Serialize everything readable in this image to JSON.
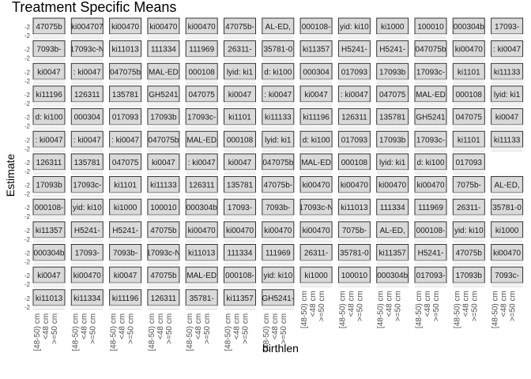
{
  "chart_data": {
    "type": "scatter",
    "title": "Treatment Specific Means",
    "xlabel": "birthlen",
    "ylabel": "Estimate",
    "categories": [
      "[48-50) cm",
      "<48 cm",
      ">=50 cm"
    ],
    "y_tick_label": "-2",
    "panel_bottom_row_columns": [
      0,
      1,
      2,
      3,
      4,
      5,
      6
    ],
    "strip_labels": [
      [
        "47075b",
        "ki004707",
        "ki00470",
        "ki00470",
        "ki00470",
        "47075b-",
        "AL-ED,",
        "000108-",
        "yid: ki10",
        "ki1000",
        "100010",
        "000304b",
        "17093-"
      ],
      [
        "7093b-",
        "17093c-N",
        "ki11013",
        "111334",
        "111969",
        "26311-",
        "35781-0",
        "ki11357",
        "H5241-",
        "H5241-",
        "047075b",
        "ki00470",
        ": ki0047"
      ],
      [
        "ki0047",
        ": ki0047",
        "047075b",
        "MAL-ED",
        "000108",
        "lyid: ki1",
        "d: ki100",
        "000304",
        "017093",
        "17093b",
        "17093c-",
        "ki1101",
        "ki11133"
      ],
      [
        "ki11196",
        "126311",
        "135781",
        "GH5241",
        "047075",
        "ki0047",
        ": ki0047",
        "ki0047",
        ": ki0047",
        "047075",
        "MAL-ED",
        "000108",
        "lyid: ki1"
      ],
      [
        "d: ki100",
        "000304",
        "017093",
        "17093b",
        "17093c-",
        "ki1101",
        "ki11133",
        "ki11196",
        "126311",
        "135781",
        "GH5241",
        "047075",
        "ki0047"
      ],
      [
        ": ki0047",
        ": ki0047",
        ": ki0047",
        "047075b",
        "MAL-ED",
        "000108",
        "lyid: ki1",
        "d: ki100",
        "017093",
        "17093b",
        "17093c-",
        "ki1101",
        "ki11133"
      ],
      [
        "126311",
        "135781",
        "047075",
        "ki0047",
        ": ki0047",
        "ki0047",
        "047075b",
        "MAL-ED",
        "000108",
        "lyid: ki1",
        "d: ki100",
        "017093",
        ""
      ],
      [
        "17093b",
        "17093c-",
        "ki1101",
        "ki11133",
        "126311",
        "135781",
        "47075b-",
        "ki00470",
        "ki00470",
        "ki00470",
        "ki00470",
        "7075b-",
        "AL-ED,"
      ],
      [
        "000108-",
        "yid: ki10",
        "ki1000",
        "100010",
        "000304b",
        "17093-",
        "7093b-",
        "17093c-N",
        "ki11013",
        "111334",
        "111969",
        "26311-",
        "35781-0"
      ],
      [
        "ki11357",
        "H5241-",
        "H5241-",
        "47075b",
        "ki00470",
        "ki00470",
        "ki00470",
        "ki00470",
        "7075b-",
        "AL-ED,",
        "000108-",
        "yid: ki10",
        "ki1000"
      ],
      [
        "000304b",
        "17093-",
        "7093b-",
        "17093c-N",
        "ki11013",
        "111334",
        "111969",
        "26311-",
        "35781-0",
        "ki11357",
        "H5241-",
        "47075b",
        "ki00470"
      ],
      [
        "ki0047",
        "ki00470",
        "ki0047",
        "47075b",
        "MAL-ED",
        "000108-",
        "yid: ki10",
        "ki1000",
        "100010",
        "000304b",
        "017093-",
        "17093b",
        "7093c-"
      ],
      [
        "ki11013",
        "ki11334",
        "ki11196",
        "126311",
        "35781-",
        "ki11357",
        "GH5241-"
      ]
    ]
  }
}
